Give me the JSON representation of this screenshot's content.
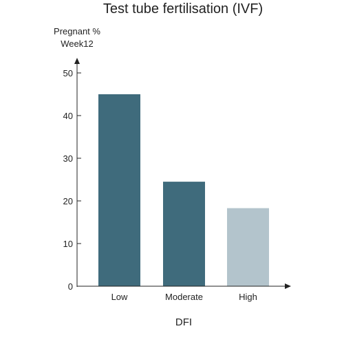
{
  "chart_data": {
    "type": "bar",
    "title": "Test tube fertilisation  (IVF)",
    "ylabel_line1": "Pregnant %",
    "ylabel_line2": "Week12",
    "xlabel": "DFI",
    "categories": [
      "Low",
      "Moderate",
      "High"
    ],
    "values": [
      45,
      24.5,
      18.3
    ],
    "colors": [
      "#3f6b7c",
      "#3f6b7c",
      "#b3c4cc"
    ],
    "ylim": [
      0,
      50
    ],
    "yticks": [
      0,
      10,
      20,
      30,
      40,
      50
    ],
    "grid": false,
    "legend": "none"
  }
}
